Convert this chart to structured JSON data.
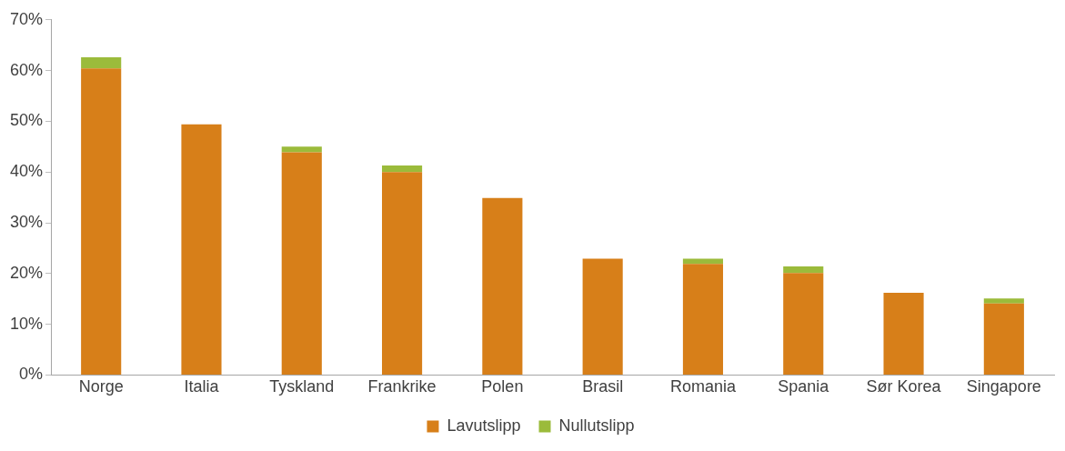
{
  "chart_data": {
    "type": "bar",
    "stacked": true,
    "categories": [
      "Norge",
      "Italia",
      "Tyskland",
      "Frankrike",
      "Polen",
      "Brasil",
      "Romania",
      "Spania",
      "Sør Korea",
      "Singapore"
    ],
    "series": [
      {
        "name": "Lavutslipp",
        "color": "#d77f19",
        "values": [
          60.4,
          49.4,
          43.9,
          40.0,
          34.9,
          22.9,
          21.9,
          20.1,
          16.2,
          14.1
        ]
      },
      {
        "name": "Nullutslipp",
        "color": "#9bbb3b",
        "values": [
          2.2,
          null,
          1.1,
          1.3,
          null,
          null,
          1.0,
          1.3,
          null,
          1.0
        ]
      }
    ],
    "ylim": [
      0,
      70
    ],
    "yticks": [
      {
        "value": 0,
        "label": "0%"
      },
      {
        "value": 10,
        "label": "10%"
      },
      {
        "value": 20,
        "label": "20%"
      },
      {
        "value": 30,
        "label": "30%"
      },
      {
        "value": 40,
        "label": "40%"
      },
      {
        "value": 50,
        "label": "50%"
      },
      {
        "value": 60,
        "label": "60%"
      },
      {
        "value": 70,
        "label": "70%"
      }
    ],
    "grid": false,
    "legend": "bottom"
  }
}
